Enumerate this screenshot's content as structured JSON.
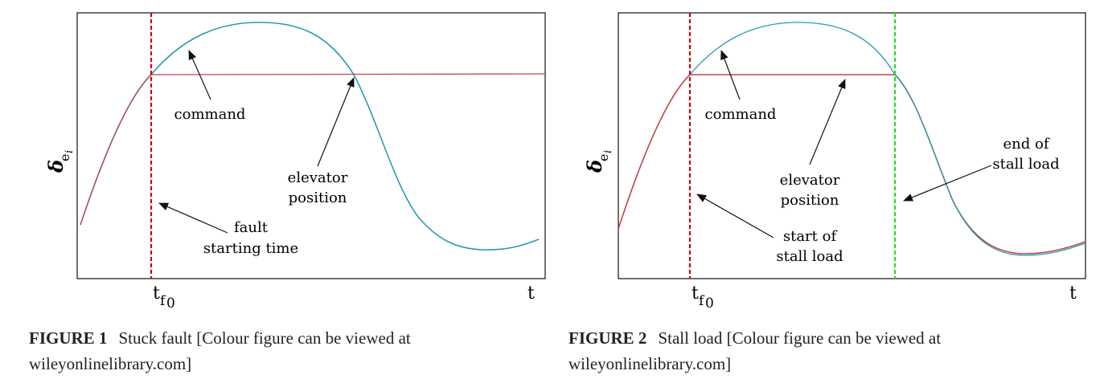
{
  "figures": [
    {
      "ylabel": "δ",
      "ylabel_sub": "e",
      "ylabel_subsub": "i",
      "tick_tf0_main": "t",
      "tick_tf0_sub": "f",
      "tick_tf0_subsub": "0",
      "tick_t": "t",
      "annotations": {
        "command": "command",
        "elevator": [
          "elevator",
          "position"
        ],
        "fault": [
          "fault",
          "starting time"
        ]
      },
      "caption": {
        "label": "FIGURE 1",
        "text": "Stuck fault [Colour figure can be viewed at wileyonlinelibrary.com]"
      },
      "colors": {
        "command": "#2a9bb0",
        "elevator": "#c0454d",
        "fault_line": "#d10000"
      }
    },
    {
      "ylabel": "δ",
      "ylabel_sub": "e",
      "ylabel_subsub": "i",
      "tick_tf0_main": "t",
      "tick_tf0_sub": "f",
      "tick_tf0_subsub": "0",
      "tick_t": "t",
      "annotations": {
        "command": "command",
        "elevator": [
          "elevator",
          "position"
        ],
        "start": [
          "start of",
          "stall load"
        ],
        "end": [
          "end of",
          "stall load"
        ]
      },
      "caption": {
        "label": "FIGURE 2",
        "text": "Stall load [Colour figure can be viewed at wileyonlinelibrary.com]"
      },
      "colors": {
        "command": "#2a9bb0",
        "elevator": "#c0454d",
        "start_line": "#d10000",
        "end_line": "#22dd22"
      }
    }
  ]
}
